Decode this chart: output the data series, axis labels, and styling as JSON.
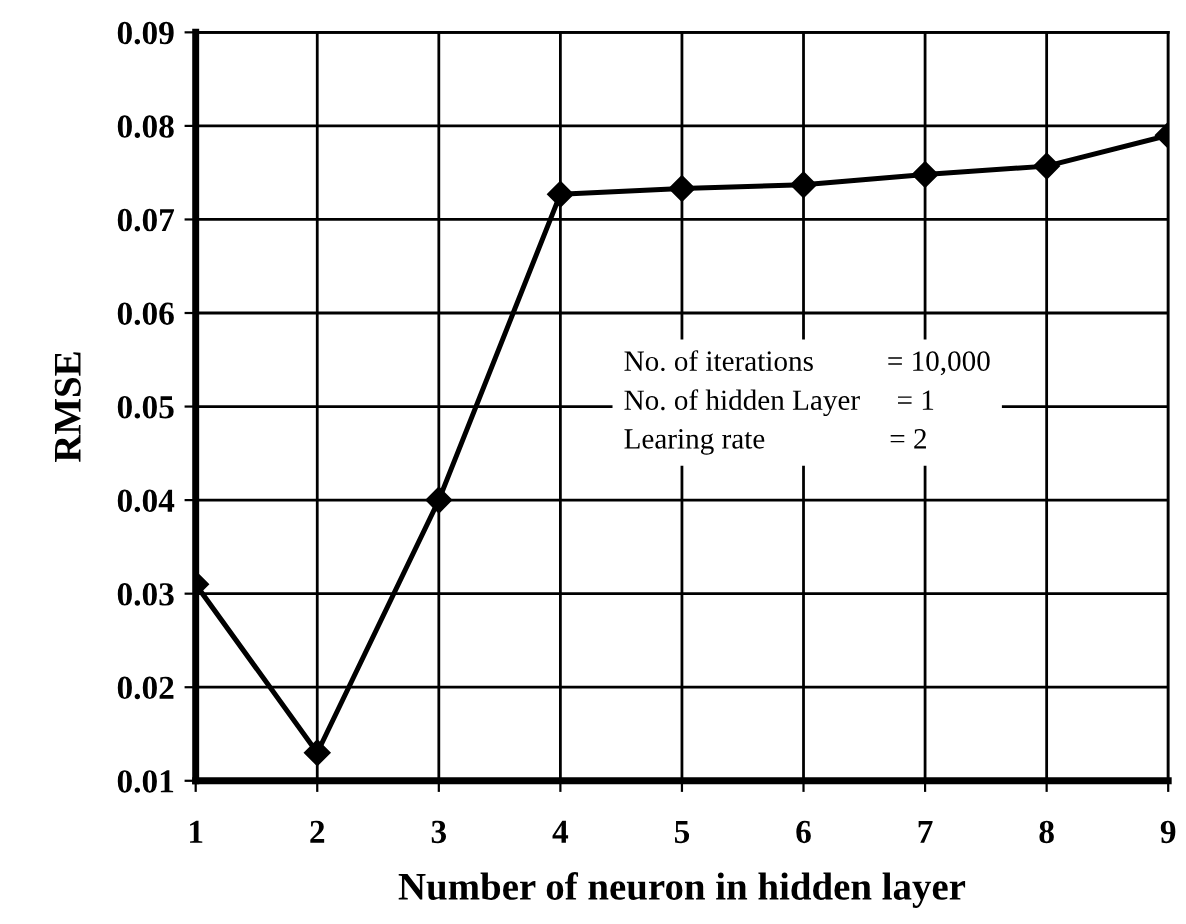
{
  "chart_data": {
    "type": "line",
    "xlabel": "Number of neuron in hidden layer",
    "ylabel": "RMSE",
    "x": [
      1,
      2,
      3,
      4,
      5,
      6,
      7,
      8,
      9
    ],
    "values": [
      0.031,
      0.013,
      0.04,
      0.0727,
      0.0733,
      0.0737,
      0.0748,
      0.0757,
      0.079
    ],
    "color": "#000000",
    "marker": "diamond",
    "line_style": "solid",
    "xlim": [
      1,
      9
    ],
    "xticks": [
      1,
      2,
      3,
      4,
      5,
      6,
      7,
      8,
      9
    ],
    "ylim": [
      0.01,
      0.09
    ],
    "yticks": [
      {
        "value": 0.01,
        "label": "0.01"
      },
      {
        "value": 0.02,
        "label": "0.02"
      },
      {
        "value": 0.03,
        "label": "0.03"
      },
      {
        "value": 0.04,
        "label": "0.04"
      },
      {
        "value": 0.05,
        "label": "0.05"
      },
      {
        "value": 0.06,
        "label": "0.06"
      },
      {
        "value": 0.07,
        "label": "0.07"
      },
      {
        "value": 0.08,
        "label": "0.08"
      },
      {
        "value": 0.09,
        "label": "0.09"
      }
    ],
    "grid": true,
    "annotations": [
      "No. of iterations          = 10,000",
      "No. of hidden Layer     = 1",
      "Learing rate                 = 2"
    ]
  }
}
